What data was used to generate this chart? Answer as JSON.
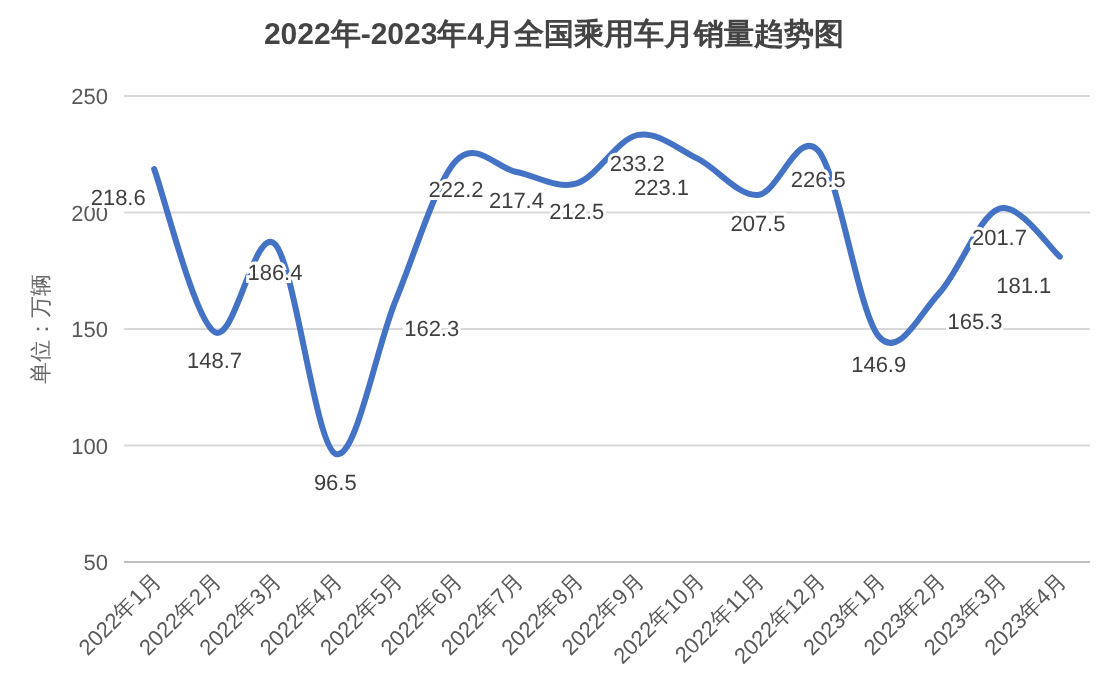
{
  "chart_data": {
    "type": "line",
    "title": "2022年-2023年4月全国乘用车月销量趋势图",
    "ylabel": "单位：万辆",
    "categories": [
      "2022年1月",
      "2022年2月",
      "2022年3月",
      "2022年4月",
      "2022年5月",
      "2022年6月",
      "2022年7月",
      "2022年8月",
      "2022年9月",
      "2022年10月",
      "2022年11月",
      "2022年12月",
      "2023年1月",
      "2023年2月",
      "2023年3月",
      "2023年4月"
    ],
    "series": [
      {
        "color": "#4472c4",
        "values": [
          218.6,
          148.7,
          186.4,
          96.5,
          162.3,
          222.2,
          217.4,
          212.5,
          233.2,
          223.1,
          207.5,
          226.5,
          146.9,
          165.3,
          201.7,
          181.1
        ]
      }
    ],
    "ylim": [
      50,
      250
    ],
    "yticks": [
      50,
      100,
      150,
      200,
      250
    ],
    "grid": "y",
    "data_labels": true,
    "line_style": "solid",
    "marker": "none"
  }
}
